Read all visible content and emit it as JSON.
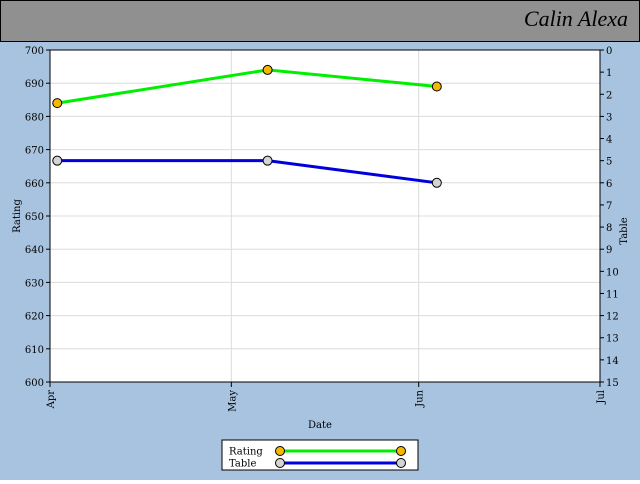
{
  "chart_data": {
    "type": "line",
    "title": "Calin Alexa",
    "x_label": "Date",
    "y_label": "Rating",
    "y2_label": "Table",
    "x": [
      1.2,
      36,
      64
    ],
    "xlim": [
      0,
      91
    ],
    "xticks": [
      {
        "value": 0,
        "label": "Apr"
      },
      {
        "value": 30,
        "label": "May"
      },
      {
        "value": 61,
        "label": "Jun"
      },
      {
        "value": 91,
        "label": "Jul"
      }
    ],
    "ylim": [
      600,
      700
    ],
    "yticks": [
      600,
      610,
      620,
      630,
      640,
      650,
      660,
      670,
      680,
      690,
      700
    ],
    "y2lim": [
      15,
      0
    ],
    "y2ticks": [
      0,
      1,
      2,
      3,
      4,
      5,
      6,
      7,
      8,
      9,
      10,
      11,
      12,
      13,
      14,
      15
    ],
    "grid": true,
    "legend": "bottom",
    "series": [
      {
        "name": "Rating",
        "color": "#00ee00",
        "marker_color": "#f5b800",
        "values": [
          684,
          694,
          689
        ]
      },
      {
        "name": "Table",
        "color": "#0000dd",
        "marker_color": "#d4d4d4",
        "axis": "y2",
        "values": [
          5,
          5,
          6
        ]
      }
    ]
  }
}
